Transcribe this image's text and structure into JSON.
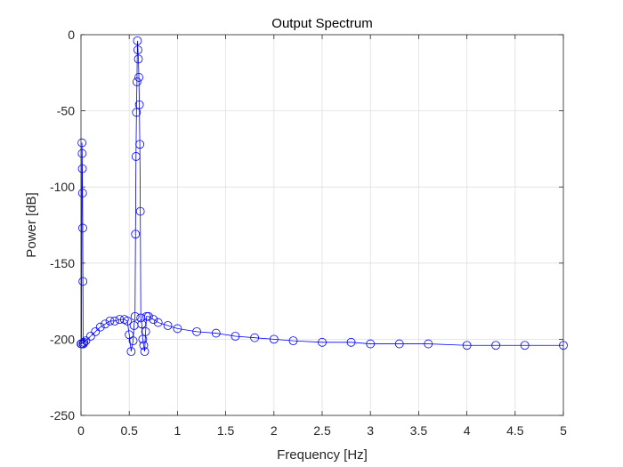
{
  "chart_data": {
    "type": "line",
    "title": "Output Spectrum",
    "xlabel": "Frequency [Hz]",
    "ylabel": "Power [dB]",
    "xlim": [
      0,
      5
    ],
    "ylim": [
      -250,
      0
    ],
    "xticks": [
      0,
      0.5,
      1,
      1.5,
      2,
      2.5,
      3,
      3.5,
      4,
      4.5,
      5
    ],
    "xtick_labels": [
      "0",
      "0.5",
      "1",
      "1.5",
      "2",
      "2.5",
      "3",
      "3.5",
      "4",
      "4.5",
      "5"
    ],
    "yticks": [
      0,
      -50,
      -100,
      -150,
      -200,
      -250
    ],
    "ytick_labels": [
      "0",
      "-50",
      "-100",
      "-150",
      "-200",
      "-250"
    ],
    "grid": true,
    "legend": "none",
    "series": [
      {
        "marker": "circle",
        "color": "#0000ff",
        "x": [
          0,
          0.005,
          0.01,
          0.012,
          0.014,
          0.016,
          0.018,
          0.02,
          0.022,
          0.025,
          0.03,
          0.05,
          0.1,
          0.15,
          0.2,
          0.25,
          0.3,
          0.35,
          0.4,
          0.45,
          0.48,
          0.5,
          0.52,
          0.54,
          0.55,
          0.56,
          0.565,
          0.57,
          0.575,
          0.58,
          0.585,
          0.59,
          0.595,
          0.6,
          0.605,
          0.61,
          0.615,
          0.62,
          0.63,
          0.64,
          0.65,
          0.66,
          0.67,
          0.68,
          0.7,
          0.75,
          0.8,
          0.9,
          1,
          1.2,
          1.4,
          1.6,
          1.8,
          2,
          2.2,
          2.5,
          2.8,
          3,
          3.3,
          3.6,
          4,
          4.3,
          4.6,
          5
        ],
        "y": [
          -203,
          -203,
          -71,
          -78,
          -88,
          -104,
          -127,
          -162,
          -203,
          -203,
          -202,
          -201,
          -198,
          -195,
          -192,
          -190,
          -188,
          -188,
          -187,
          -187,
          -188,
          -197,
          -208,
          -201,
          -191,
          -185,
          -131,
          -80,
          -51,
          -31,
          -4,
          -10,
          -16,
          -28,
          -46,
          -72,
          -116,
          -186,
          -190,
          -200,
          -204,
          -208,
          -195,
          -185,
          -185,
          -187,
          -189,
          -191,
          -193,
          -195,
          -196,
          -198,
          -199,
          -200,
          -201,
          -202,
          -202,
          -203,
          -203,
          -203,
          -204,
          -204,
          -204,
          -204
        ]
      }
    ]
  }
}
